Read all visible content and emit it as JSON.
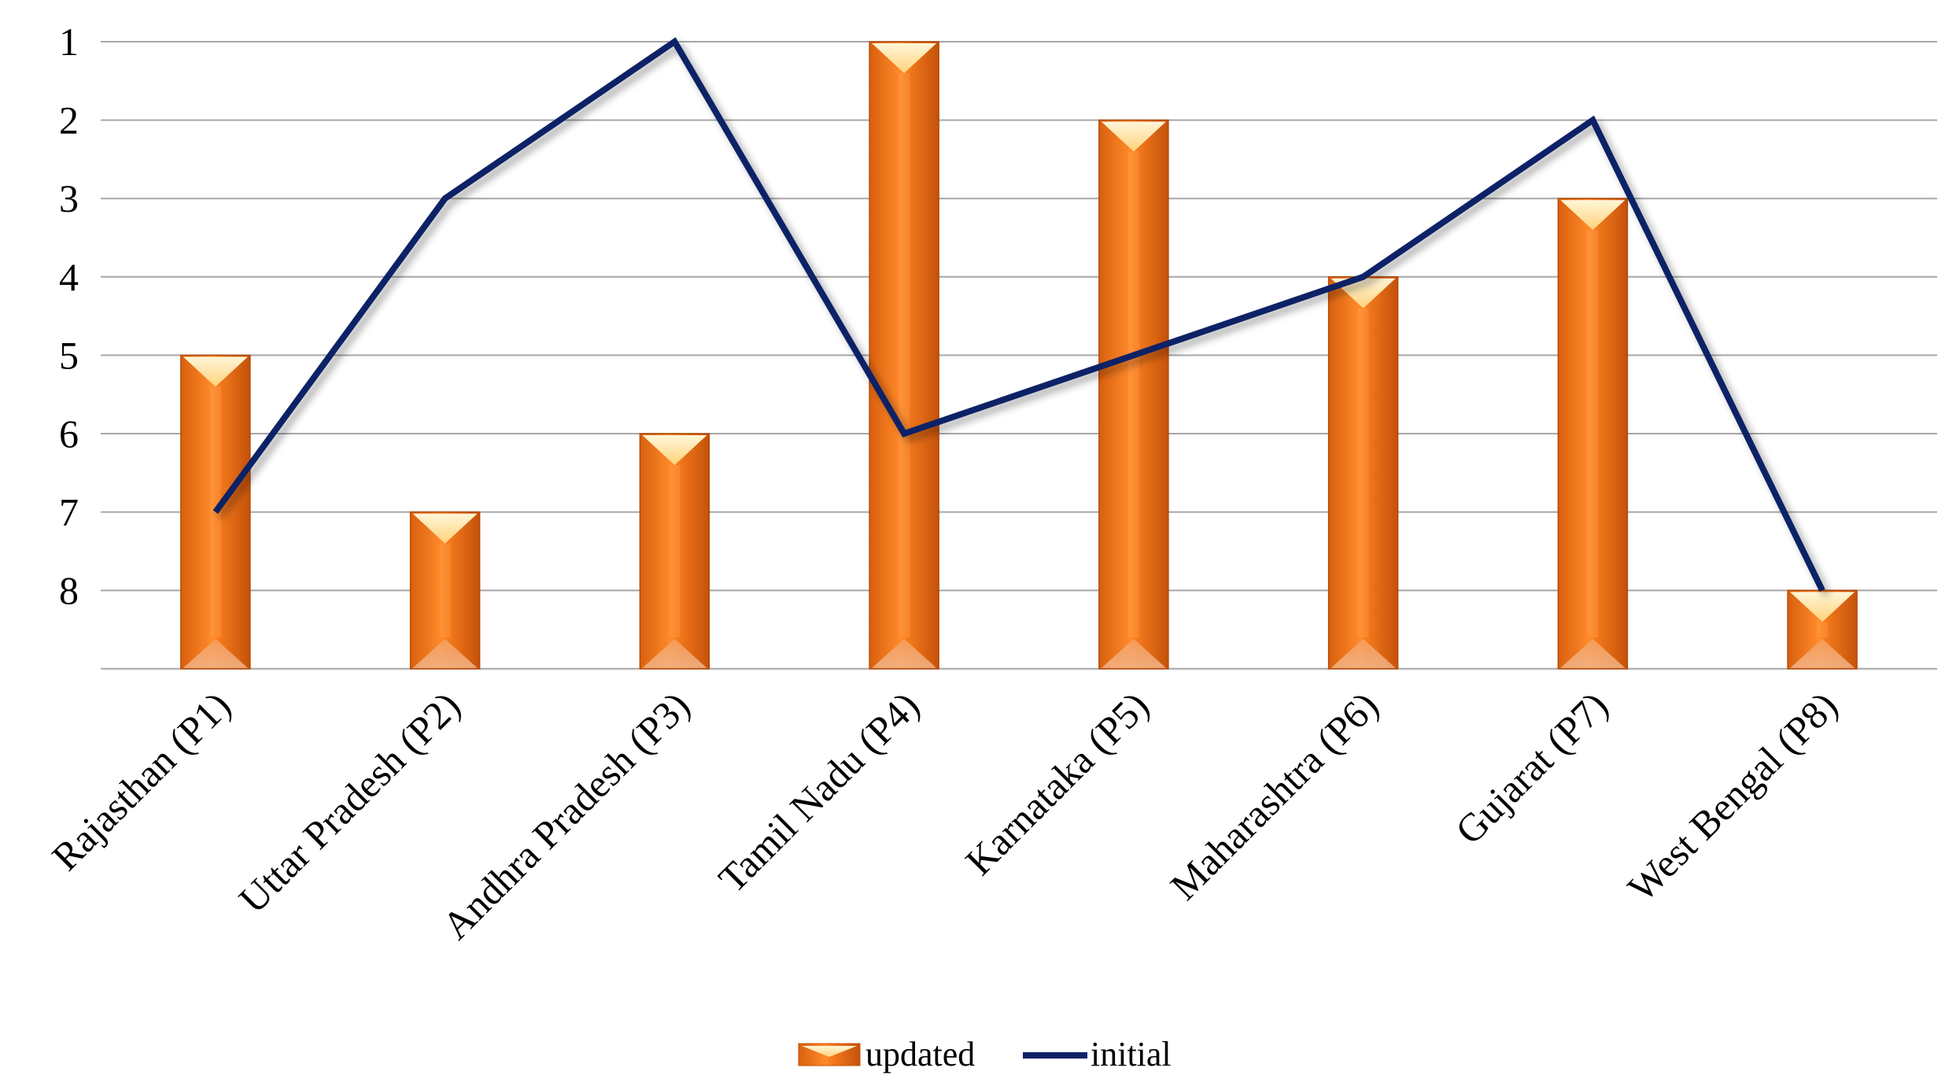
{
  "chart_data": {
    "type": "bar",
    "categories": [
      "Rajasthan (P1)",
      "Uttar Pradesh (P2)",
      "Andhra Pradesh (P3)",
      "Tamil Nadu (P4)",
      "Karnataka (P5)",
      "Maharashtra (P6)",
      "Gujarat (P7)",
      "West Bengal (P8)"
    ],
    "series": [
      {
        "name": "updated",
        "type": "bar",
        "values": [
          5,
          7,
          6,
          1,
          2,
          4,
          3,
          8
        ],
        "color": "#F07A1A"
      },
      {
        "name": "initial",
        "type": "line",
        "values": [
          7,
          3,
          1,
          6,
          5,
          4,
          2,
          8
        ],
        "color": "#0D2266"
      }
    ],
    "yticks": [
      "1",
      "2",
      "3",
      "4",
      "5",
      "6",
      "7",
      "8"
    ],
    "ylim": [
      1,
      9
    ],
    "y_reversed": true,
    "grid": true,
    "legend_position": "bottom-center",
    "title": "",
    "xlabel": "",
    "ylabel": ""
  }
}
